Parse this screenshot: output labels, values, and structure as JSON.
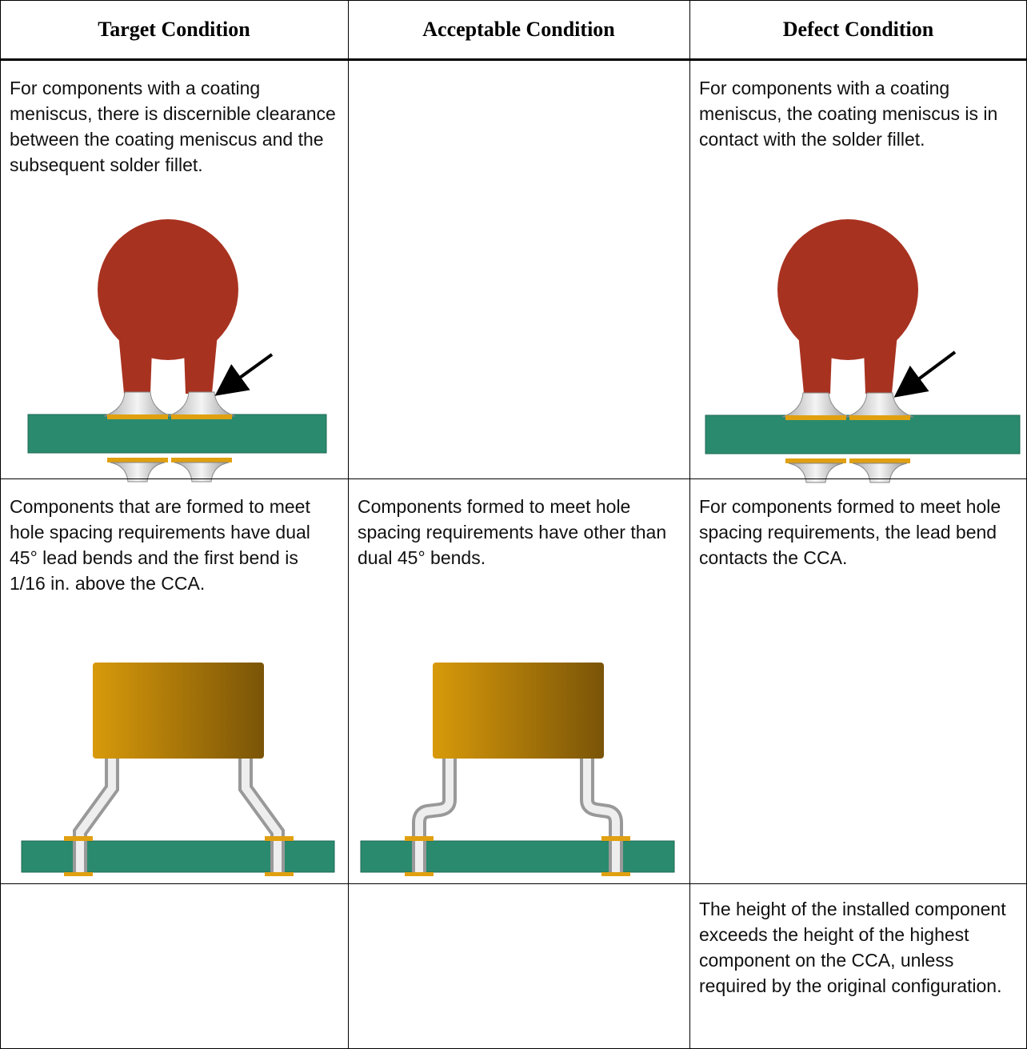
{
  "table": {
    "headers": [
      "Target Condition",
      "Acceptable Condition",
      "Defect Condition"
    ],
    "rows": [
      {
        "target": "For components with a coating meniscus, there is discernible clearance between the coating meniscus and the subsequent solder fillet.",
        "defect": "For components with a coating meniscus, the coating meniscus is in contact with the solder fillet."
      },
      {
        "target": "Components that are formed to meet hole spacing requirements have dual 45° lead bends and the first bend is 1/16 in. above the CCA.",
        "acceptable": "Components formed to meet hole spacing requirements have other than dual 45° bends.",
        "defect": "For components formed to meet hole spacing requirements, the lead bend contacts the CCA."
      },
      {
        "defect": "The height of the installed component exceeds the height of the highest component on the CCA, unless required by the original configuration."
      }
    ]
  }
}
